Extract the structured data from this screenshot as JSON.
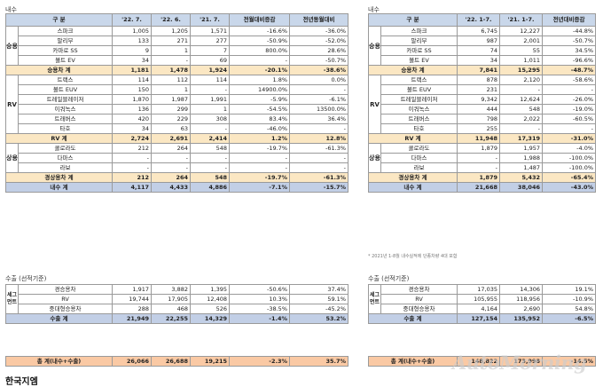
{
  "domestic": {
    "label": "내수",
    "monthly": {
      "headers": [
        "구 분",
        "'22. 7.",
        "'22. 6.",
        "'21. 7.",
        "전월대비증감",
        "전년동월대비"
      ],
      "groups": [
        {
          "name": "승용",
          "rows": [
            {
              "label": "스파크",
              "v": [
                "1,005",
                "1,205",
                "1,571",
                "-16.6%",
                "-36.0%"
              ]
            },
            {
              "label": "말리부",
              "v": [
                "133",
                "271",
                "277",
                "-50.9%",
                "-52.0%"
              ]
            },
            {
              "label": "카마로 SS",
              "v": [
                "9",
                "1",
                "7",
                "800.0%",
                "28.6%"
              ]
            },
            {
              "label": "볼트 EV",
              "v": [
                "34",
                "-",
                "69",
                "-",
                "-50.7%"
              ]
            }
          ],
          "subtotal": {
            "label": "승용차 계",
            "v": [
              "1,181",
              "1,478",
              "1,924",
              "-20.1%",
              "-38.6%"
            ]
          }
        },
        {
          "name": "RV",
          "rows": [
            {
              "label": "트랙스",
              "v": [
                "114",
                "112",
                "114",
                "1.8%",
                "0.0%"
              ]
            },
            {
              "label": "볼트 EUV",
              "v": [
                "150",
                "1",
                "-",
                "14900.0%",
                "-"
              ]
            },
            {
              "label": "트레일블레이저",
              "v": [
                "1,870",
                "1,987",
                "1,991",
                "-5.9%",
                "-6.1%"
              ]
            },
            {
              "label": "이쿼녹스",
              "v": [
                "136",
                "299",
                "1",
                "-54.5%",
                "13500.0%"
              ]
            },
            {
              "label": "트래버스",
              "v": [
                "420",
                "229",
                "308",
                "83.4%",
                "36.4%"
              ]
            },
            {
              "label": "타호",
              "v": [
                "34",
                "63",
                "-",
                "-46.0%",
                "-"
              ]
            }
          ],
          "subtotal": {
            "label": "RV 계",
            "v": [
              "2,724",
              "2,691",
              "2,414",
              "1.2%",
              "12.8%"
            ]
          }
        },
        {
          "name": "상용",
          "rows": [
            {
              "label": "콜로라도",
              "v": [
                "212",
                "264",
                "548",
                "-19.7%",
                "-61.3%"
              ]
            },
            {
              "label": "다마스",
              "v": [
                "-",
                "-",
                "-",
                "-",
                "-"
              ]
            },
            {
              "label": "라보",
              "v": [
                "-",
                "-",
                "-",
                "-",
                "-"
              ]
            }
          ],
          "subtotal": {
            "label": "경상용차 계",
            "v": [
              "212",
              "264",
              "548",
              "-19.7%",
              "-61.3%"
            ]
          }
        }
      ],
      "total": {
        "label": "내수 계",
        "v": [
          "4,117",
          "4,433",
          "4,886",
          "-7.1%",
          "-15.7%"
        ]
      }
    },
    "ytd": {
      "headers": [
        "구 분",
        "'22. 1-7.",
        "'21. 1-7.",
        "전년대비증감"
      ],
      "groups": [
        {
          "name": "승용",
          "rows": [
            {
              "label": "스파크",
              "v": [
                "6,745",
                "12,227",
                "-44.8%"
              ]
            },
            {
              "label": "말리부",
              "v": [
                "987",
                "2,001",
                "-50.7%"
              ]
            },
            {
              "label": "카마로 SS",
              "v": [
                "74",
                "55",
                "34.5%"
              ]
            },
            {
              "label": "볼트 EV",
              "v": [
                "34",
                "1,011",
                "-96.6%"
              ]
            }
          ],
          "subtotal": {
            "label": "승용차 계",
            "v": [
              "7,841",
              "15,295",
              "-48.7%"
            ]
          }
        },
        {
          "name": "RV",
          "rows": [
            {
              "label": "트랙스",
              "v": [
                "878",
                "2,120",
                "-58.6%"
              ]
            },
            {
              "label": "볼트 EUV",
              "v": [
                "231",
                "-",
                "-"
              ]
            },
            {
              "label": "트레일블레이저",
              "v": [
                "9,342",
                "12,624",
                "-26.0%"
              ]
            },
            {
              "label": "이쿼녹스",
              "v": [
                "444",
                "548",
                "-19.0%"
              ]
            },
            {
              "label": "트래버스",
              "v": [
                "798",
                "2,022",
                "-60.5%"
              ]
            },
            {
              "label": "타호",
              "v": [
                "255",
                "-",
                "-"
              ]
            }
          ],
          "subtotal": {
            "label": "RV 계",
            "v": [
              "11,948",
              "17,319",
              "-31.0%"
            ]
          }
        },
        {
          "name": "상용",
          "rows": [
            {
              "label": "콜로라도",
              "v": [
                "1,879",
                "1,957",
                "-4.0%"
              ]
            },
            {
              "label": "다마스",
              "v": [
                "-",
                "1,988",
                "-100.0%"
              ]
            },
            {
              "label": "라보",
              "v": [
                "-",
                "1,487",
                "-100.0%"
              ]
            }
          ],
          "subtotal": {
            "label": "경상용차 계",
            "v": [
              "1,879",
              "5,432",
              "-65.4%"
            ]
          }
        }
      ],
      "total": {
        "label": "내수 계",
        "v": [
          "21,668",
          "38,046",
          "-43.0%"
        ]
      },
      "footnote": "* 2021년 1-8월 내수실적에 단종차량 4대 포함"
    }
  },
  "export": {
    "label": "수출 (선적기준)",
    "group": "세그먼트",
    "monthly": {
      "rows": [
        {
          "label": "경승용차",
          "v": [
            "1,917",
            "3,882",
            "1,395",
            "-50.6%",
            "37.4%"
          ]
        },
        {
          "label": "RV",
          "v": [
            "19,744",
            "17,905",
            "12,408",
            "10.3%",
            "59.1%"
          ]
        },
        {
          "label": "중대형승용차",
          "v": [
            "288",
            "468",
            "526",
            "-38.5%",
            "-45.2%"
          ]
        }
      ],
      "total": {
        "label": "수출 계",
        "v": [
          "21,949",
          "22,255",
          "14,329",
          "-1.4%",
          "53.2%"
        ]
      }
    },
    "ytd": {
      "rows": [
        {
          "label": "경승용차",
          "v": [
            "17,035",
            "14,306",
            "19.1%"
          ]
        },
        {
          "label": "RV",
          "v": [
            "105,955",
            "118,956",
            "-10.9%"
          ]
        },
        {
          "label": "중대형승용차",
          "v": [
            "4,164",
            "2,690",
            "54.8%"
          ]
        }
      ],
      "total": {
        "label": "수출 계",
        "v": [
          "127,154",
          "135,952",
          "-6.5%"
        ]
      }
    }
  },
  "grand": {
    "monthly": {
      "label": "총 계(내수+수출)",
      "v": [
        "26,066",
        "26,688",
        "19,215",
        "-2.3%",
        "35.7%"
      ]
    },
    "ytd": {
      "label": "총 계(내수+수출)",
      "v": [
        "148,822",
        "173,998",
        "-14.5%"
      ]
    }
  },
  "watermark": "AutoMorning",
  "footer_title": "한국지엠"
}
